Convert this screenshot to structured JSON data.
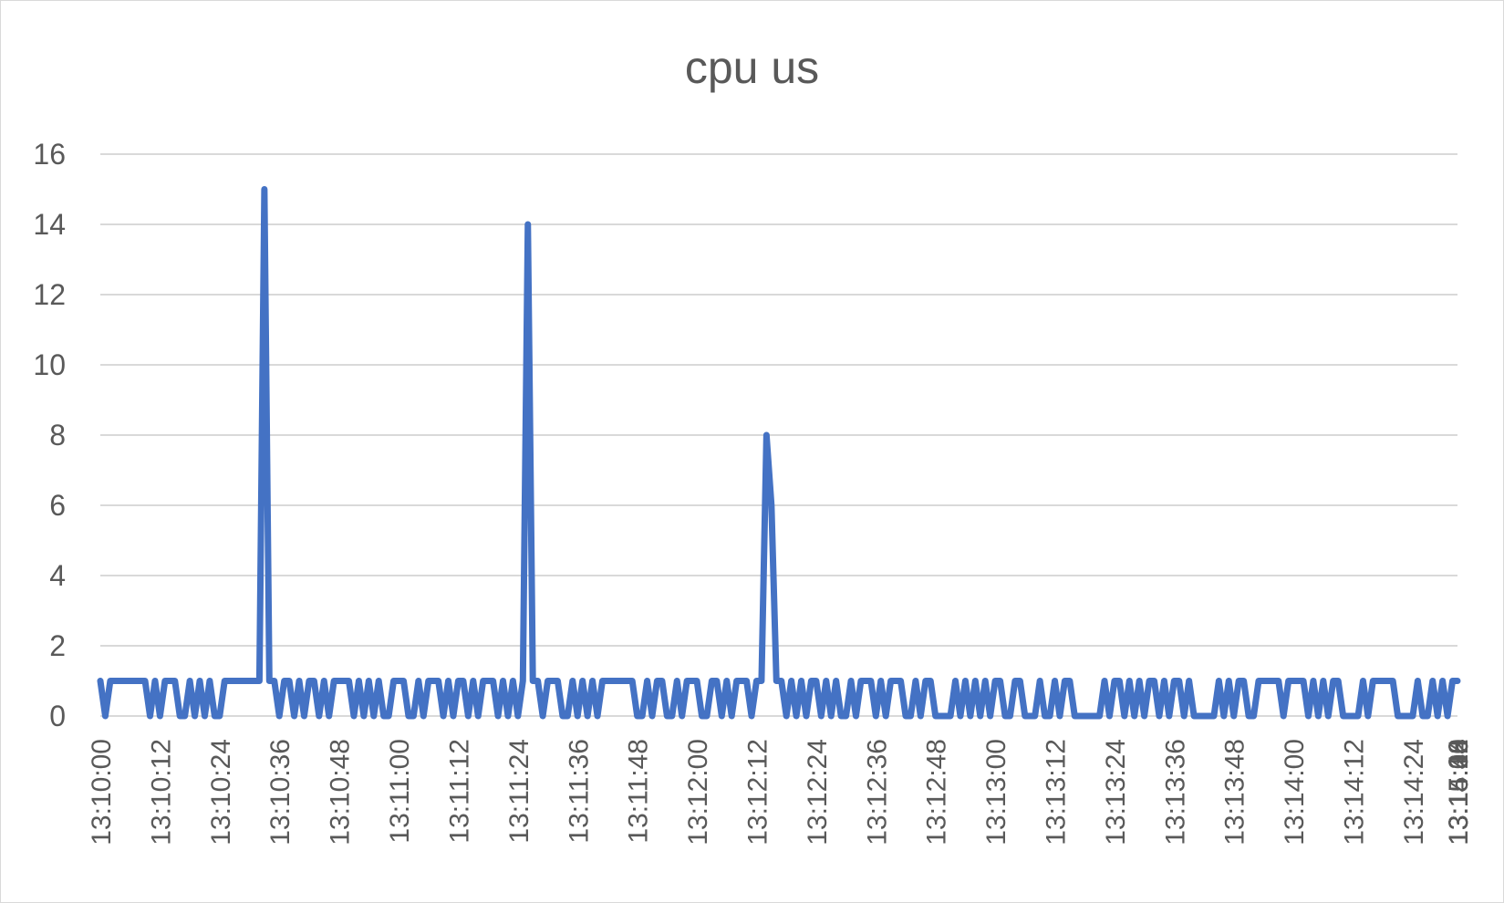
{
  "chart_data": {
    "type": "line",
    "title": "cpu us",
    "xlabel": "",
    "ylabel": "",
    "ylim": [
      0,
      16
    ],
    "yticks": [
      0,
      2,
      4,
      6,
      8,
      10,
      12,
      14,
      16
    ],
    "grid": true,
    "legend": "none",
    "line_color": "#4472C4",
    "x_tick_labels": [
      "13:10:00",
      "13:10:12",
      "13:10:24",
      "13:10:36",
      "13:10:48",
      "13:11:00",
      "13:11:12",
      "13:11:24",
      "13:11:36",
      "13:11:48",
      "13:12:00",
      "13:12:12",
      "13:12:24",
      "13:12:36",
      "13:12:48",
      "13:13:00",
      "13:13:12",
      "13:13:24",
      "13:13:36",
      "13:13:48",
      "13:14:00",
      "13:14:12",
      "13:14:24",
      "13:14:36",
      "13:14:48",
      "13:15:00",
      "13:15:12",
      "13:15:24"
    ],
    "x_start": "13:10:00",
    "x_interval_seconds": 1,
    "series": [
      {
        "values": [
          1,
          0,
          1,
          1,
          1,
          1,
          1,
          1,
          1,
          1,
          0,
          1,
          0,
          1,
          1,
          1,
          0,
          0,
          1,
          0,
          1,
          0,
          1,
          0,
          0,
          1,
          1,
          1,
          1,
          1,
          1,
          1,
          1,
          15,
          1,
          1,
          0,
          1,
          1,
          0,
          1,
          0,
          1,
          1,
          0,
          1,
          0,
          1,
          1,
          1,
          1,
          0,
          1,
          0,
          1,
          0,
          1,
          0,
          0,
          1,
          1,
          1,
          0,
          0,
          1,
          0,
          1,
          1,
          1,
          0,
          1,
          0,
          1,
          1,
          0,
          1,
          0,
          1,
          1,
          1,
          0,
          1,
          0,
          1,
          0,
          1,
          14,
          1,
          1,
          0,
          1,
          1,
          1,
          0,
          0,
          1,
          0,
          1,
          0,
          1,
          0,
          1,
          1,
          1,
          1,
          1,
          1,
          1,
          0,
          0,
          1,
          0,
          1,
          1,
          0,
          0,
          1,
          0,
          1,
          1,
          1,
          0,
          0,
          1,
          1,
          0,
          1,
          0,
          1,
          1,
          1,
          0,
          1,
          1,
          8,
          6,
          1,
          1,
          0,
          1,
          0,
          1,
          0,
          1,
          1,
          0,
          1,
          0,
          1,
          0,
          0,
          1,
          0,
          1,
          1,
          1,
          0,
          1,
          0,
          1,
          1,
          1,
          0,
          0,
          1,
          0,
          1,
          1,
          0,
          0,
          0,
          0,
          1,
          0,
          1,
          0,
          1,
          0,
          1,
          0,
          1,
          1,
          0,
          0,
          1,
          1,
          0,
          0,
          0,
          1,
          0,
          0,
          1,
          0,
          1,
          1,
          0,
          0,
          0,
          0,
          0,
          0,
          1,
          0,
          1,
          1,
          0,
          1,
          0,
          1,
          0,
          1,
          1,
          0,
          1,
          0,
          1,
          1,
          0,
          1,
          0,
          0,
          0,
          0,
          0,
          1,
          0,
          1,
          0,
          1,
          1,
          0,
          0,
          1,
          1,
          1,
          1,
          1,
          0,
          1,
          1,
          1,
          1,
          0,
          1,
          0,
          1,
          0,
          1,
          1,
          0,
          0,
          0,
          0,
          1,
          0,
          1,
          1,
          1,
          1,
          1,
          0,
          0,
          0,
          0,
          1,
          0,
          0,
          1,
          0,
          1,
          0,
          1,
          1
        ]
      }
    ]
  }
}
